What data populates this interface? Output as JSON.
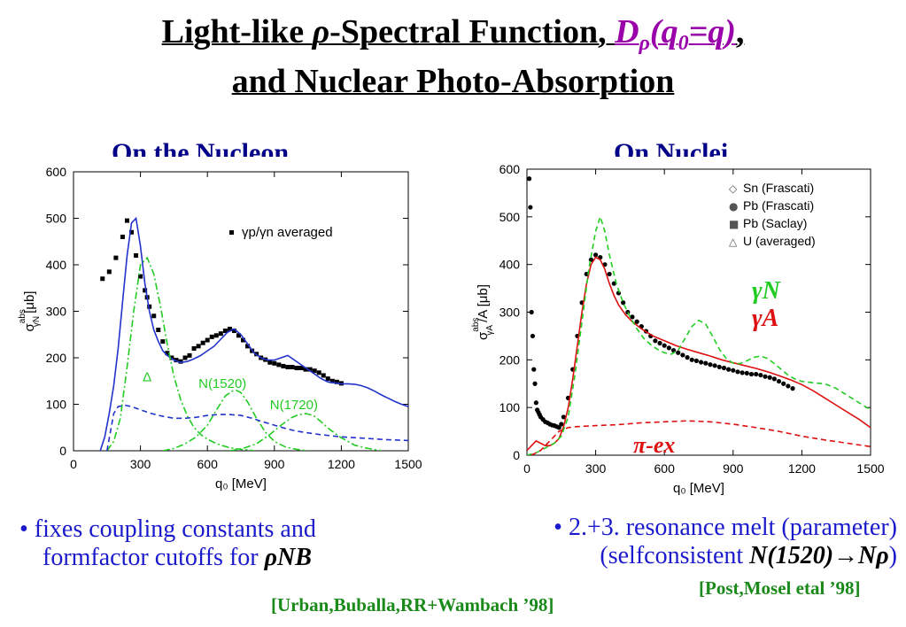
{
  "header": {
    "line1_a": "Light-like ",
    "line1_rho": "ρ",
    "line1_b": "-Spectral Function, ",
    "line1_D": "D",
    "line1_Dsub": "ρ",
    "line1_arg_open": "(q",
    "line1_arg_sub": "0",
    "line1_arg_close": "=q)",
    "line1_comma": ",",
    "line2": "and Nuclear Photo-Absorption"
  },
  "panels": {
    "left_title": "On the Nucleon",
    "right_title": "On Nuclei"
  },
  "chart_data": [
    {
      "type": "line",
      "xlabel": "q₀ [MeV]",
      "ylabel_main": "σ",
      "ylabel_sup": "abs",
      "ylabel_sub": "γN",
      "ylabel_unit": "[μb]",
      "xlim": [
        0,
        1500
      ],
      "ylim": [
        0,
        600
      ],
      "xticks": [
        0,
        300,
        600,
        900,
        1200,
        1500
      ],
      "yticks": [
        0,
        100,
        200,
        300,
        400,
        500,
        600
      ],
      "legend": "γp/γn averaged",
      "legend_position": "top-right",
      "annotations": [
        {
          "text": "Δ",
          "x": 310,
          "y": 150,
          "color": "#22cc22"
        },
        {
          "text": "N(1520)",
          "x": 560,
          "y": 135,
          "color": "#22cc22"
        },
        {
          "text": "N(1720)",
          "x": 880,
          "y": 90,
          "color": "#22cc22"
        }
      ],
      "series": [
        {
          "style": "markers-square",
          "color": "#000000",
          "x": [
            130,
            160,
            190,
            220,
            240,
            260,
            280,
            300,
            320,
            330,
            340,
            360,
            380,
            400,
            420,
            440,
            460,
            480,
            500,
            520,
            540,
            560,
            580,
            600,
            620,
            640,
            660,
            680,
            700,
            720,
            740,
            760,
            780,
            800,
            820,
            840,
            860,
            880,
            900,
            920,
            940,
            960,
            980,
            1000,
            1020,
            1040,
            1060,
            1080,
            1100,
            1120,
            1140,
            1160,
            1180,
            1200
          ],
          "y": [
            370,
            385,
            415,
            460,
            495,
            470,
            420,
            375,
            345,
            330,
            310,
            290,
            260,
            235,
            210,
            200,
            195,
            192,
            200,
            205,
            220,
            225,
            232,
            238,
            245,
            248,
            252,
            258,
            262,
            258,
            248,
            238,
            225,
            215,
            208,
            200,
            196,
            190,
            188,
            185,
            182,
            180,
            180,
            178,
            178,
            175,
            175,
            172,
            168,
            162,
            155,
            150,
            148,
            145
          ]
        },
        {
          "style": "solid",
          "color": "#2233cc",
          "x": [
            120,
            140,
            160,
            180,
            200,
            220,
            240,
            260,
            280,
            300,
            320,
            340,
            360,
            380,
            400,
            420,
            450,
            480,
            510,
            540,
            570,
            600,
            630,
            660,
            690,
            720,
            750,
            780,
            810,
            840,
            870,
            900,
            930,
            960,
            990,
            1020,
            1050,
            1080,
            1110,
            1140,
            1170,
            1200,
            1230,
            1260,
            1290,
            1320,
            1350,
            1380,
            1410,
            1440,
            1470,
            1500
          ],
          "y": [
            0,
            30,
            80,
            140,
            220,
            320,
            420,
            490,
            500,
            440,
            360,
            300,
            260,
            235,
            215,
            205,
            195,
            190,
            192,
            198,
            205,
            215,
            225,
            240,
            255,
            262,
            250,
            230,
            210,
            200,
            195,
            195,
            200,
            205,
            195,
            185,
            175,
            165,
            155,
            148,
            146,
            144,
            144,
            143,
            140,
            135,
            128,
            120,
            113,
            106,
            100,
            95
          ]
        },
        {
          "style": "dash-dot",
          "color": "#22cc22",
          "x": [
            150,
            180,
            210,
            240,
            270,
            300,
            330,
            360,
            390,
            420,
            450,
            480,
            510,
            540,
            570,
            600,
            630,
            660,
            690,
            720,
            750,
            780,
            810
          ],
          "y": [
            0,
            20,
            70,
            180,
            300,
            400,
            415,
            380,
            310,
            230,
            160,
            110,
            75,
            50,
            35,
            25,
            18,
            12,
            8,
            5,
            3,
            2,
            0
          ]
        },
        {
          "style": "dash-dot",
          "color": "#22cc22",
          "x": [
            400,
            450,
            500,
            550,
            600,
            650,
            680,
            710,
            730,
            750,
            780,
            820,
            860,
            900,
            950,
            1000,
            1050
          ],
          "y": [
            0,
            5,
            15,
            30,
            55,
            95,
            118,
            128,
            130,
            125,
            105,
            70,
            40,
            20,
            8,
            3,
            0
          ]
        },
        {
          "style": "dash-dot",
          "color": "#22cc22",
          "x": [
            700,
            760,
            820,
            880,
            930,
            980,
            1010,
            1040,
            1060,
            1080,
            1110,
            1150,
            1200,
            1260,
            1320,
            1380
          ],
          "y": [
            0,
            5,
            15,
            35,
            55,
            72,
            78,
            80,
            78,
            74,
            62,
            45,
            28,
            12,
            5,
            0
          ]
        },
        {
          "style": "dashed",
          "color": "#2233cc",
          "x": [
            150,
            180,
            200,
            230,
            260,
            300,
            350,
            400,
            450,
            500,
            550,
            600,
            650,
            700,
            750,
            800,
            850,
            900,
            950,
            1000,
            1100,
            1200,
            1300,
            1400,
            1500
          ],
          "y": [
            0,
            80,
            95,
            98,
            95,
            88,
            80,
            74,
            70,
            70,
            72,
            76,
            78,
            78,
            76,
            70,
            62,
            55,
            48,
            42,
            35,
            30,
            27,
            24,
            22
          ]
        }
      ]
    },
    {
      "type": "line",
      "xlabel": "q₀ [MeV]",
      "ylabel_main": "σ",
      "ylabel_sup": "abs",
      "ylabel_sub": "γA",
      "ylabel_unit": "/A [μb]",
      "xlim": [
        0,
        1500
      ],
      "ylim": [
        0,
        600
      ],
      "xticks": [
        0,
        300,
        600,
        900,
        1200,
        1500
      ],
      "yticks": [
        0,
        100,
        200,
        300,
        400,
        500,
        600
      ],
      "legend_entries": [
        {
          "marker": "◇",
          "label": "Sn (Frascati)"
        },
        {
          "marker": "●",
          "label": "Pb (Frascati)"
        },
        {
          "marker": "■",
          "label": "Pb (Saclay)"
        },
        {
          "marker": "△",
          "label": "U  (averaged)"
        }
      ],
      "legend_position": "top-right",
      "annotations": [
        {
          "text": "γN",
          "color": "#22cc22"
        },
        {
          "text": "γA",
          "color": "#dd1111"
        },
        {
          "text": "π-ex",
          "color": "#dd1111"
        }
      ],
      "series": [
        {
          "style": "markers",
          "color": "#000000",
          "x": [
            10,
            15,
            20,
            25,
            30,
            35,
            40,
            45,
            50,
            55,
            60,
            70,
            80,
            90,
            100,
            110,
            120,
            130,
            140,
            150,
            160,
            180,
            200,
            220,
            240,
            260,
            280,
            300,
            320,
            340,
            360,
            380,
            400,
            420,
            440,
            460,
            480,
            500,
            520,
            540,
            560,
            580,
            600,
            620,
            640,
            660,
            680,
            700,
            720,
            740,
            760,
            780,
            800,
            820,
            840,
            860,
            880,
            900,
            920,
            940,
            960,
            980,
            1000,
            1020,
            1040,
            1060,
            1080,
            1100,
            1120,
            1140,
            1160
          ],
          "y": [
            580,
            520,
            300,
            250,
            180,
            150,
            110,
            95,
            90,
            85,
            80,
            75,
            70,
            68,
            65,
            63,
            62,
            60,
            58,
            65,
            80,
            120,
            180,
            250,
            320,
            380,
            410,
            420,
            415,
            400,
            380,
            360,
            340,
            320,
            300,
            290,
            280,
            270,
            260,
            250,
            240,
            235,
            230,
            225,
            220,
            215,
            210,
            205,
            200,
            198,
            195,
            193,
            190,
            188,
            185,
            183,
            180,
            178,
            175,
            173,
            172,
            170,
            170,
            168,
            165,
            163,
            160,
            155,
            150,
            145,
            140
          ]
        },
        {
          "style": "solid",
          "color": "#dd1111",
          "x": [
            0,
            20,
            40,
            60,
            80,
            100,
            120,
            140,
            160,
            180,
            200,
            220,
            240,
            260,
            280,
            300,
            320,
            340,
            360,
            380,
            400,
            430,
            460,
            500,
            550,
            600,
            650,
            700,
            750,
            800,
            850,
            900,
            950,
            1000,
            1050,
            1100,
            1150,
            1200,
            1250,
            1300,
            1350,
            1400,
            1450,
            1500
          ],
          "y": [
            10,
            20,
            30,
            25,
            20,
            20,
            25,
            35,
            60,
            100,
            160,
            230,
            300,
            360,
            400,
            415,
            410,
            390,
            360,
            335,
            315,
            295,
            280,
            265,
            250,
            240,
            230,
            222,
            215,
            208,
            200,
            194,
            188,
            182,
            175,
            167,
            158,
            148,
            135,
            120,
            105,
            90,
            75,
            58
          ]
        },
        {
          "style": "dashed",
          "color": "#22cc22",
          "x": [
            0,
            40,
            80,
            120,
            150,
            180,
            210,
            240,
            270,
            300,
            320,
            340,
            360,
            390,
            420,
            450,
            480,
            510,
            540,
            570,
            600,
            630,
            660,
            690,
            720,
            750,
            780,
            810,
            840,
            870,
            900,
            930,
            960,
            990,
            1020,
            1050,
            1080,
            1110,
            1140,
            1170,
            1200,
            1250,
            1300,
            1350,
            1400,
            1450,
            1500
          ],
          "y": [
            0,
            5,
            15,
            25,
            40,
            80,
            170,
            280,
            390,
            470,
            500,
            470,
            420,
            360,
            320,
            290,
            265,
            245,
            232,
            222,
            215,
            212,
            220,
            245,
            270,
            283,
            275,
            250,
            222,
            203,
            193,
            192,
            198,
            205,
            208,
            203,
            192,
            180,
            168,
            160,
            155,
            152,
            150,
            140,
            125,
            110,
            95
          ]
        },
        {
          "style": "dashed",
          "color": "#dd1111",
          "x": [
            20,
            60,
            100,
            140,
            180,
            220,
            300,
            400,
            500,
            600,
            700,
            800,
            900,
            1000,
            1100,
            1200,
            1300,
            1400,
            1500
          ],
          "y": [
            0,
            10,
            30,
            50,
            58,
            60,
            62,
            64,
            68,
            70,
            72,
            70,
            65,
            58,
            50,
            40,
            32,
            25,
            18
          ]
        }
      ]
    }
  ],
  "bullets": {
    "left_line1": "• fixes coupling constants and",
    "left_line2": "formfactor cutoffs for ",
    "left_line2_ital": "ρNB",
    "right_line1": "• 2.+3. resonance melt (parameter)",
    "right_line2": "(selfconsistent ",
    "right_line2_ital": "N(1520)→Nρ",
    "right_line2_end": ")"
  },
  "citations": {
    "right": "[Post,Mosel etal ’98]",
    "bottom": "[Urban,Buballa,RR+Wambach ’98]"
  },
  "colors": {
    "title": "#000000",
    "panel_title": "#000088",
    "bullet": "#1a1acc",
    "citation": "#1a8a1a",
    "purple": "#9900aa"
  }
}
